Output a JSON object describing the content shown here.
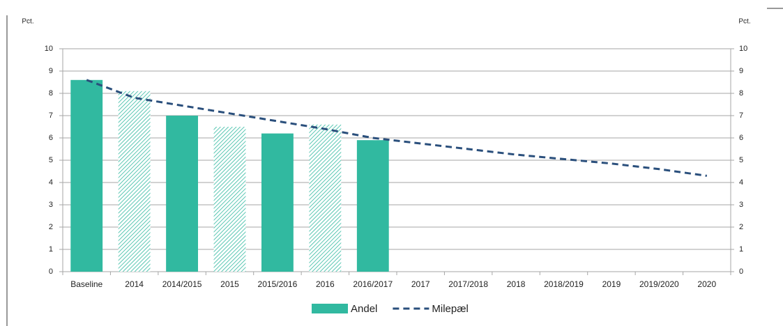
{
  "chart_data": {
    "type": "bar",
    "y_label": "Pct.",
    "y2_label": "Pct.",
    "categories": [
      "Baseline",
      "2014",
      "2014/2015",
      "2015",
      "2015/2016",
      "2016",
      "2016/2017",
      "2017",
      "2017/2018",
      "2018",
      "2018/2019",
      "2019",
      "2019/2020",
      "2020"
    ],
    "series": [
      {
        "name": "Andel",
        "type": "bar",
        "color": "#31b9a0",
        "values": [
          8.6,
          8.1,
          7.0,
          6.5,
          6.2,
          6.6,
          5.9,
          null,
          null,
          null,
          null,
          null,
          null,
          null
        ],
        "hatched": [
          false,
          true,
          false,
          true,
          false,
          true,
          false,
          false,
          false,
          false,
          false,
          false,
          false,
          false
        ]
      },
      {
        "name": "Milepæl",
        "type": "line",
        "color": "#2a4f7c",
        "dashed": true,
        "values": [
          8.6,
          7.8,
          7.45,
          7.1,
          6.75,
          6.4,
          6.0,
          5.75,
          5.5,
          5.25,
          5.05,
          4.85,
          4.6,
          4.3
        ]
      }
    ],
    "ylim": [
      0,
      10
    ],
    "yticks": [
      0,
      1,
      2,
      3,
      4,
      5,
      6,
      7,
      8,
      9,
      10
    ],
    "y2lim": [
      0,
      10
    ],
    "y2ticks": [
      0,
      1,
      2,
      3,
      4,
      5,
      6,
      7,
      8,
      9,
      10
    ],
    "grid": true,
    "legend": "bottom"
  }
}
